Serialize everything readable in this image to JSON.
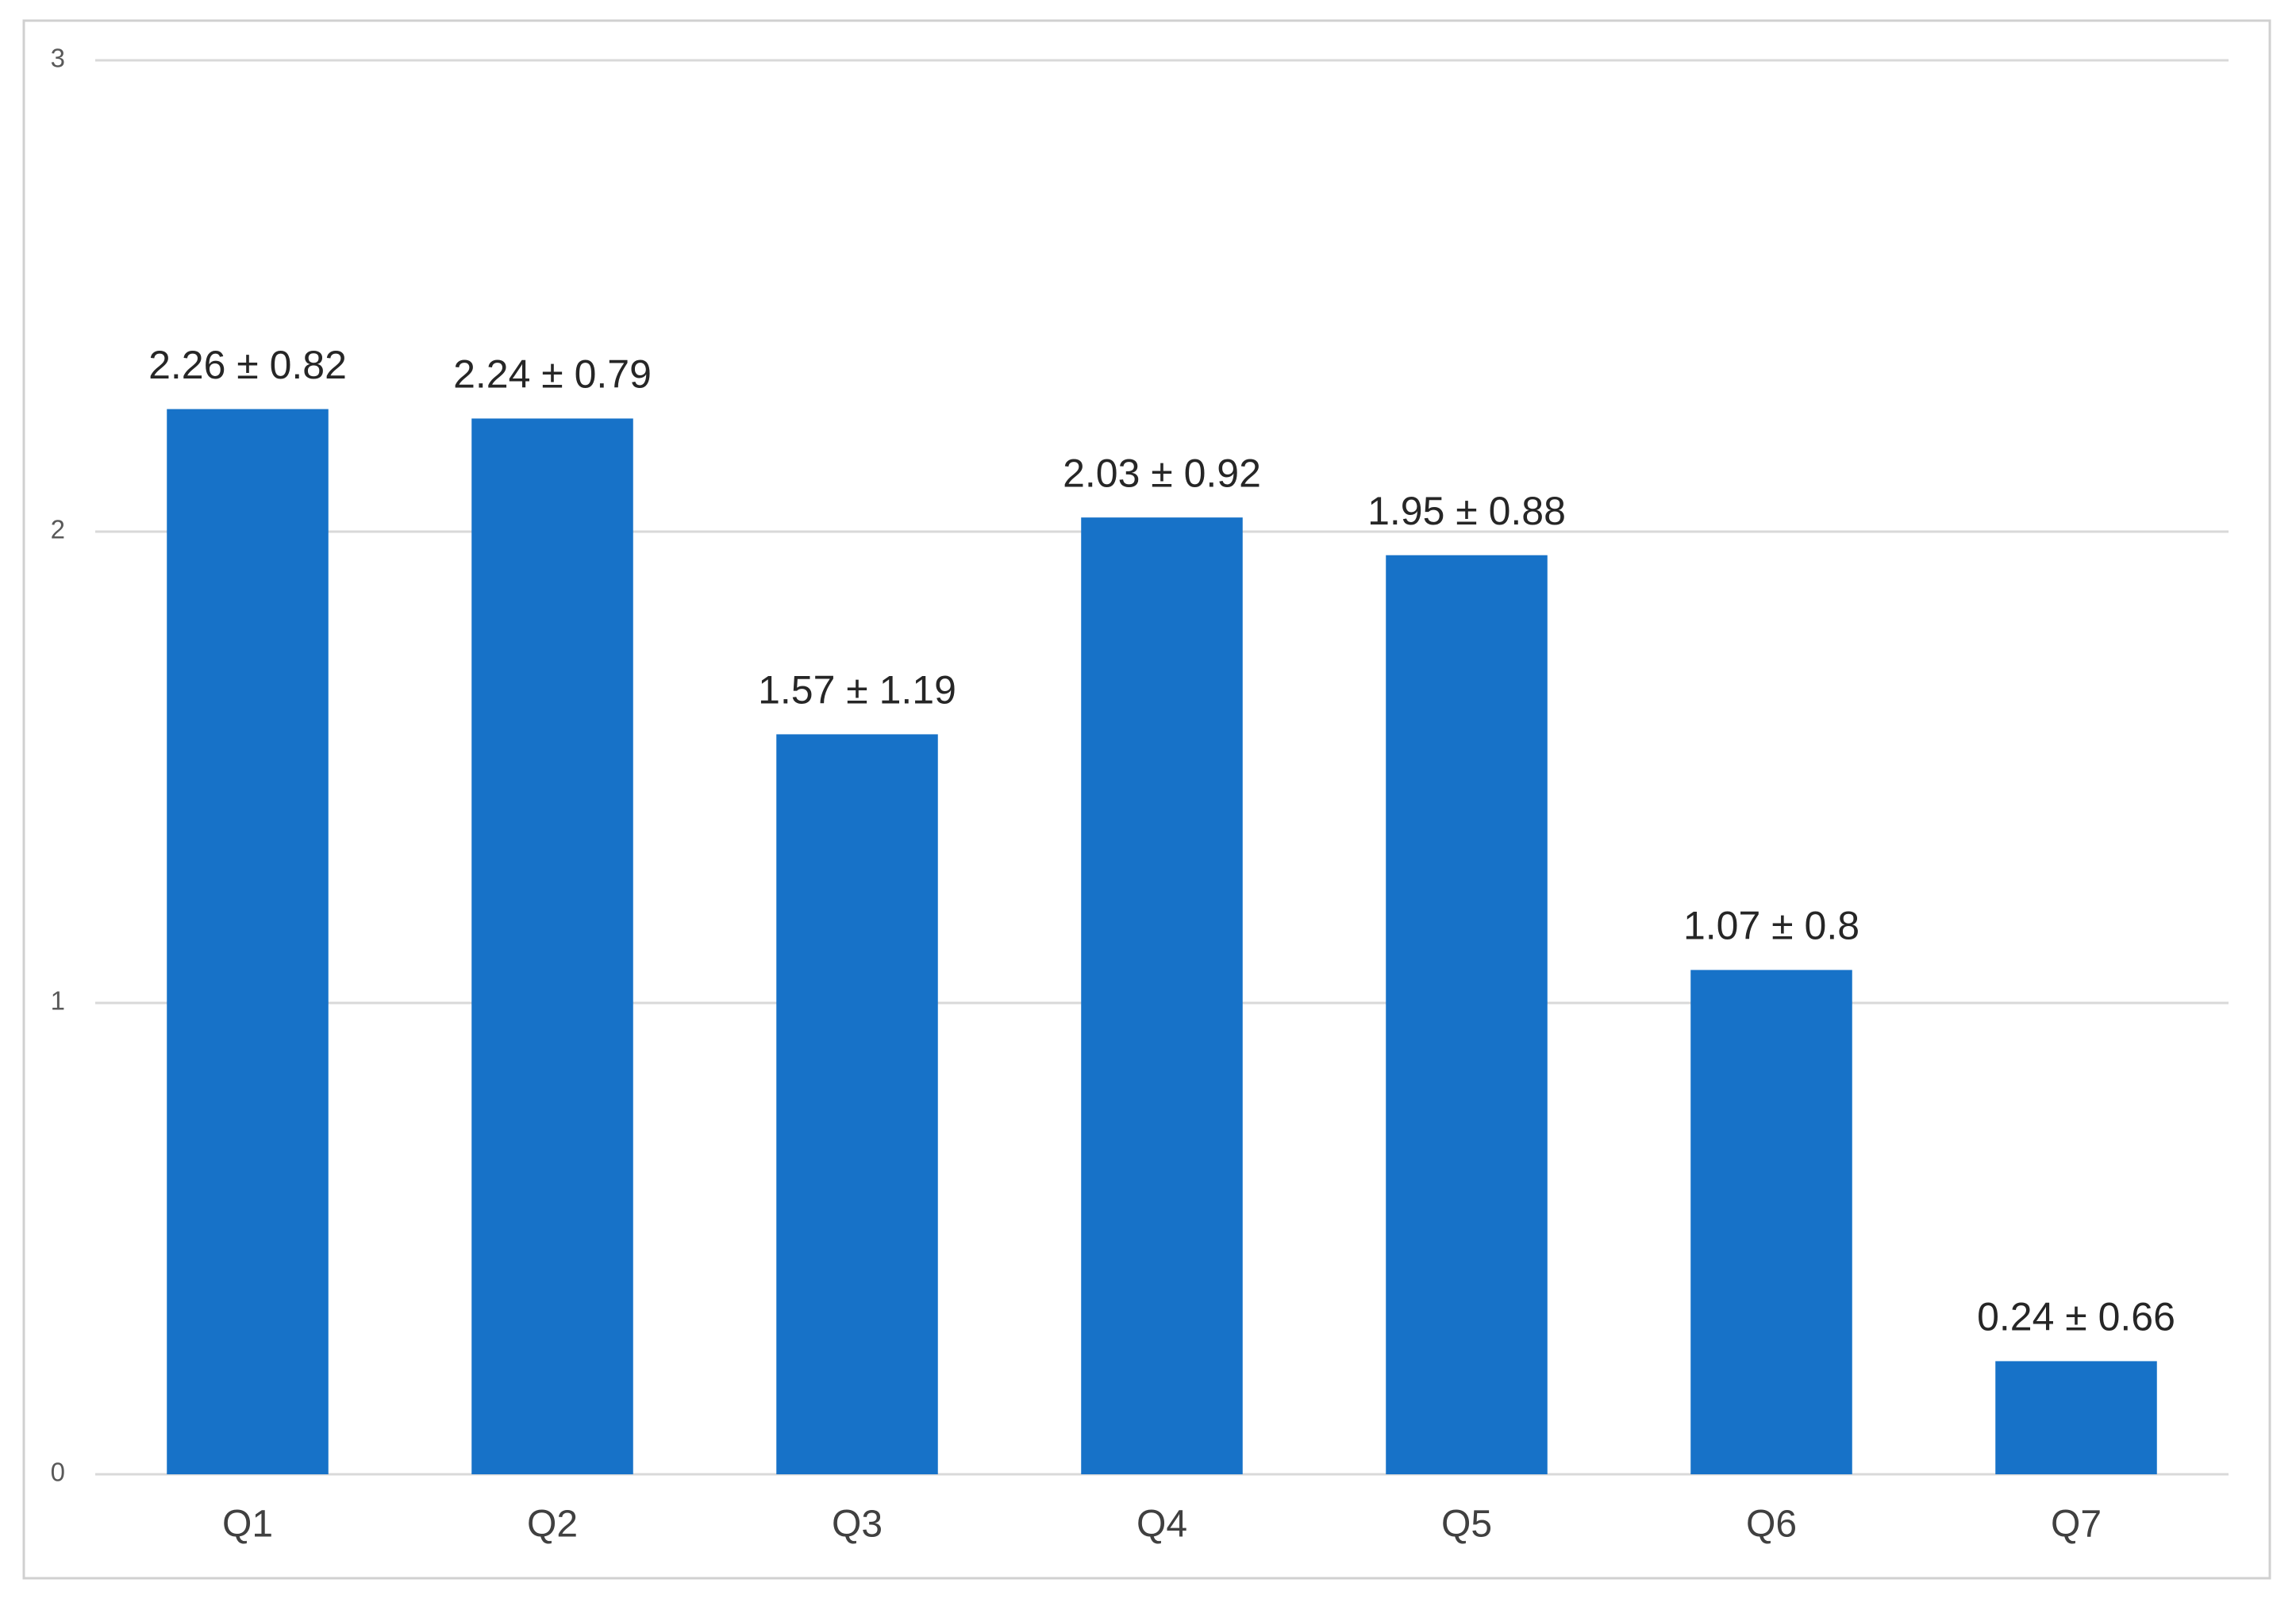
{
  "chart_data": {
    "type": "bar",
    "categories": [
      "Q1",
      "Q2",
      "Q3",
      "Q4",
      "Q5",
      "Q6",
      "Q7"
    ],
    "values": [
      2.26,
      2.24,
      1.57,
      2.03,
      1.95,
      1.07,
      0.24
    ],
    "value_labels": [
      "2.26 ± 0.82",
      "2.24 ± 0.79",
      "1.57 ± 1.19",
      "2.03 ± 0.92",
      "1.95 ± 0.88",
      "1.07 ± 0.8",
      "0.24 ± 0.66"
    ],
    "color": "#1772c8",
    "ylim": [
      0,
      3
    ],
    "yticks": [
      0,
      1,
      2,
      3
    ],
    "grid": true
  }
}
